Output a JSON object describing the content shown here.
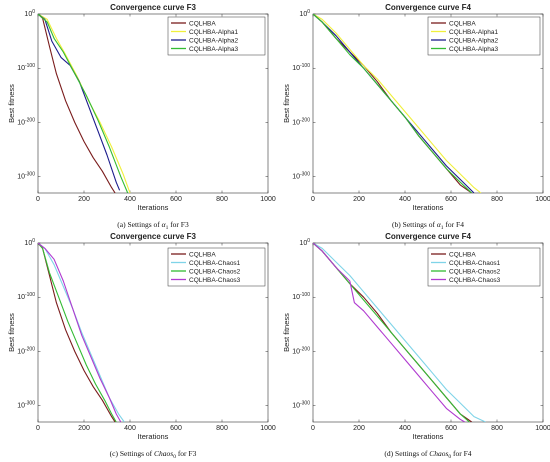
{
  "figure": {
    "panels": [
      {
        "caption_letter": "(a)",
        "caption_pre": "Settings of ",
        "caption_sym": "α",
        "caption_sub": "1",
        "caption_post": " for F3"
      },
      {
        "caption_letter": "(b)",
        "caption_pre": "Settings of ",
        "caption_sym": "α",
        "caption_sub": "1",
        "caption_post": " for F4"
      },
      {
        "caption_letter": "(c)",
        "caption_pre": "Settings of ",
        "caption_sym": "Chaos",
        "caption_sub": "0",
        "caption_post": " for F3"
      },
      {
        "caption_letter": "(d)",
        "caption_pre": "Settings of ",
        "caption_sym": "Chaos",
        "caption_sub": "0",
        "caption_post": " for F4"
      }
    ]
  },
  "chart_data": [
    {
      "type": "line",
      "title": "Convergence curve F3",
      "xlabel": "Iterations",
      "ylabel": "Best fitness",
      "xlim": [
        0,
        1000
      ],
      "xticks": [
        0,
        200,
        400,
        600,
        800,
        1000
      ],
      "ylim_exp": [
        -330,
        0
      ],
      "yticks": [
        "10^0",
        "10^-100",
        "10^-200",
        "10^-300"
      ],
      "yscale": "log",
      "legend_position": "top-right",
      "series": [
        {
          "name": "CQLHBA",
          "color": "#7a1c1c",
          "x": [
            0,
            20,
            50,
            80,
            120,
            160,
            200,
            240,
            280,
            320,
            335
          ],
          "y_exp": [
            0,
            -8,
            -60,
            -110,
            -160,
            -200,
            -235,
            -265,
            -290,
            -320,
            -330
          ]
        },
        {
          "name": "CQLHBA-Alpha1",
          "color": "#f0f03c",
          "x": [
            0,
            40,
            80,
            120,
            170,
            220,
            270,
            320,
            370,
            400
          ],
          "y_exp": [
            0,
            -10,
            -45,
            -75,
            -115,
            -160,
            -200,
            -245,
            -295,
            -330
          ]
        },
        {
          "name": "CQLHBA-Alpha2",
          "color": "#1c1c8c",
          "x": [
            0,
            30,
            60,
            100,
            140,
            180,
            220,
            260,
            300,
            340,
            355
          ],
          "y_exp": [
            0,
            -10,
            -50,
            -80,
            -95,
            -125,
            -170,
            -215,
            -260,
            -310,
            -325
          ]
        },
        {
          "name": "CQLHBA-Alpha3",
          "color": "#33bb33",
          "x": [
            0,
            40,
            70,
            110,
            160,
            210,
            260,
            310,
            360,
            390
          ],
          "y_exp": [
            0,
            -15,
            -45,
            -70,
            -110,
            -150,
            -195,
            -245,
            -300,
            -330
          ]
        }
      ]
    },
    {
      "type": "line",
      "title": "Convergence curve F4",
      "xlabel": "Iterations",
      "ylabel": "Best fitness",
      "xlim": [
        0,
        1000
      ],
      "xticks": [
        0,
        200,
        400,
        600,
        800,
        1000
      ],
      "ylim_exp": [
        -330,
        0
      ],
      "yticks": [
        "10^0",
        "10^-100",
        "10^-200",
        "10^-300"
      ],
      "yscale": "log",
      "legend_position": "top-right",
      "series": [
        {
          "name": "CQLHBA",
          "color": "#7a1c1c",
          "x": [
            0,
            40,
            100,
            160,
            220,
            280,
            340,
            400,
            460,
            520,
            580,
            640,
            690
          ],
          "y_exp": [
            0,
            -15,
            -45,
            -70,
            -95,
            -125,
            -160,
            -190,
            -225,
            -255,
            -285,
            -315,
            -330
          ]
        },
        {
          "name": "CQLHBA-Alpha1",
          "color": "#f0f03c",
          "x": [
            0,
            40,
            100,
            160,
            220,
            280,
            340,
            400,
            460,
            520,
            580,
            640,
            700,
            730
          ],
          "y_exp": [
            0,
            -10,
            -35,
            -65,
            -95,
            -120,
            -150,
            -180,
            -210,
            -240,
            -270,
            -295,
            -320,
            -330
          ]
        },
        {
          "name": "CQLHBA-Alpha2",
          "color": "#1c1c8c",
          "x": [
            0,
            40,
            100,
            160,
            220,
            280,
            340,
            400,
            460,
            520,
            580,
            640,
            700
          ],
          "y_exp": [
            0,
            -15,
            -40,
            -70,
            -100,
            -130,
            -160,
            -190,
            -220,
            -250,
            -280,
            -305,
            -330
          ]
        },
        {
          "name": "CQLHBA-Alpha3",
          "color": "#33bb33",
          "x": [
            0,
            40,
            100,
            160,
            220,
            280,
            340,
            400,
            460,
            520,
            580,
            640,
            690
          ],
          "y_exp": [
            0,
            -15,
            -45,
            -75,
            -100,
            -130,
            -160,
            -190,
            -225,
            -255,
            -285,
            -310,
            -330
          ]
        }
      ]
    },
    {
      "type": "line",
      "title": "Convergence curve F3",
      "xlabel": "Iterations",
      "ylabel": "Best fitness",
      "xlim": [
        0,
        1000
      ],
      "xticks": [
        0,
        200,
        400,
        600,
        800,
        1000
      ],
      "ylim_exp": [
        -330,
        0
      ],
      "yticks": [
        "10^0",
        "10^-100",
        "10^-200",
        "10^-300"
      ],
      "yscale": "log",
      "legend_position": "top-right",
      "series": [
        {
          "name": "CQLHBA",
          "color": "#7a1c1c",
          "x": [
            0,
            20,
            50,
            80,
            120,
            160,
            200,
            240,
            280,
            320,
            335
          ],
          "y_exp": [
            0,
            -10,
            -60,
            -110,
            -160,
            -200,
            -235,
            -265,
            -290,
            -320,
            -330
          ]
        },
        {
          "name": "CQLHBA-Chaos1",
          "color": "#7fd4e8",
          "x": [
            0,
            30,
            70,
            110,
            150,
            190,
            230,
            270,
            310,
            350,
            375
          ],
          "y_exp": [
            0,
            -10,
            -40,
            -80,
            -120,
            -165,
            -205,
            -245,
            -285,
            -315,
            -330
          ]
        },
        {
          "name": "CQLHBA-Chaos2",
          "color": "#33bb33",
          "x": [
            0,
            20,
            50,
            90,
            130,
            170,
            210,
            250,
            290,
            320,
            340
          ],
          "y_exp": [
            0,
            -10,
            -55,
            -100,
            -145,
            -185,
            -225,
            -260,
            -290,
            -315,
            -330
          ]
        },
        {
          "name": "CQLHBA-Chaos3",
          "color": "#b03ad0",
          "x": [
            0,
            30,
            70,
            110,
            150,
            190,
            230,
            270,
            310,
            340,
            360
          ],
          "y_exp": [
            0,
            -10,
            -30,
            -70,
            -120,
            -170,
            -210,
            -250,
            -285,
            -315,
            -330
          ]
        }
      ]
    },
    {
      "type": "line",
      "title": "Convergence curve F4",
      "xlabel": "Iterations",
      "ylabel": "Best fitness",
      "xlim": [
        0,
        1000
      ],
      "xticks": [
        0,
        200,
        400,
        600,
        800,
        1000
      ],
      "ylim_exp": [
        -330,
        0
      ],
      "yticks": [
        "10^0",
        "10^-100",
        "10^-200",
        "10^-300"
      ],
      "yscale": "log",
      "legend_position": "top-right",
      "series": [
        {
          "name": "CQLHBA",
          "color": "#7a1c1c",
          "x": [
            0,
            40,
            100,
            160,
            220,
            280,
            340,
            400,
            460,
            520,
            580,
            640,
            690
          ],
          "y_exp": [
            0,
            -15,
            -45,
            -75,
            -100,
            -130,
            -165,
            -195,
            -225,
            -255,
            -285,
            -315,
            -330
          ]
        },
        {
          "name": "CQLHBA-Chaos1",
          "color": "#7fd4e8",
          "x": [
            0,
            40,
            100,
            160,
            220,
            280,
            340,
            400,
            460,
            520,
            580,
            640,
            700,
            750
          ],
          "y_exp": [
            0,
            -10,
            -35,
            -60,
            -90,
            -120,
            -150,
            -180,
            -210,
            -240,
            -270,
            -295,
            -320,
            -330
          ]
        },
        {
          "name": "CQLHBA-Chaos2",
          "color": "#33bb33",
          "x": [
            0,
            40,
            100,
            160,
            220,
            280,
            340,
            400,
            460,
            520,
            580,
            640,
            680
          ],
          "y_exp": [
            0,
            -15,
            -45,
            -75,
            -105,
            -135,
            -165,
            -195,
            -225,
            -255,
            -285,
            -315,
            -330
          ]
        },
        {
          "name": "CQLHBA-Chaos3",
          "color": "#b03ad0",
          "x": [
            0,
            40,
            100,
            160,
            180,
            220,
            280,
            340,
            400,
            460,
            520,
            580,
            640,
            660
          ],
          "y_exp": [
            0,
            -15,
            -45,
            -70,
            -110,
            -125,
            -155,
            -185,
            -215,
            -245,
            -275,
            -305,
            -325,
            -330
          ]
        }
      ]
    }
  ]
}
